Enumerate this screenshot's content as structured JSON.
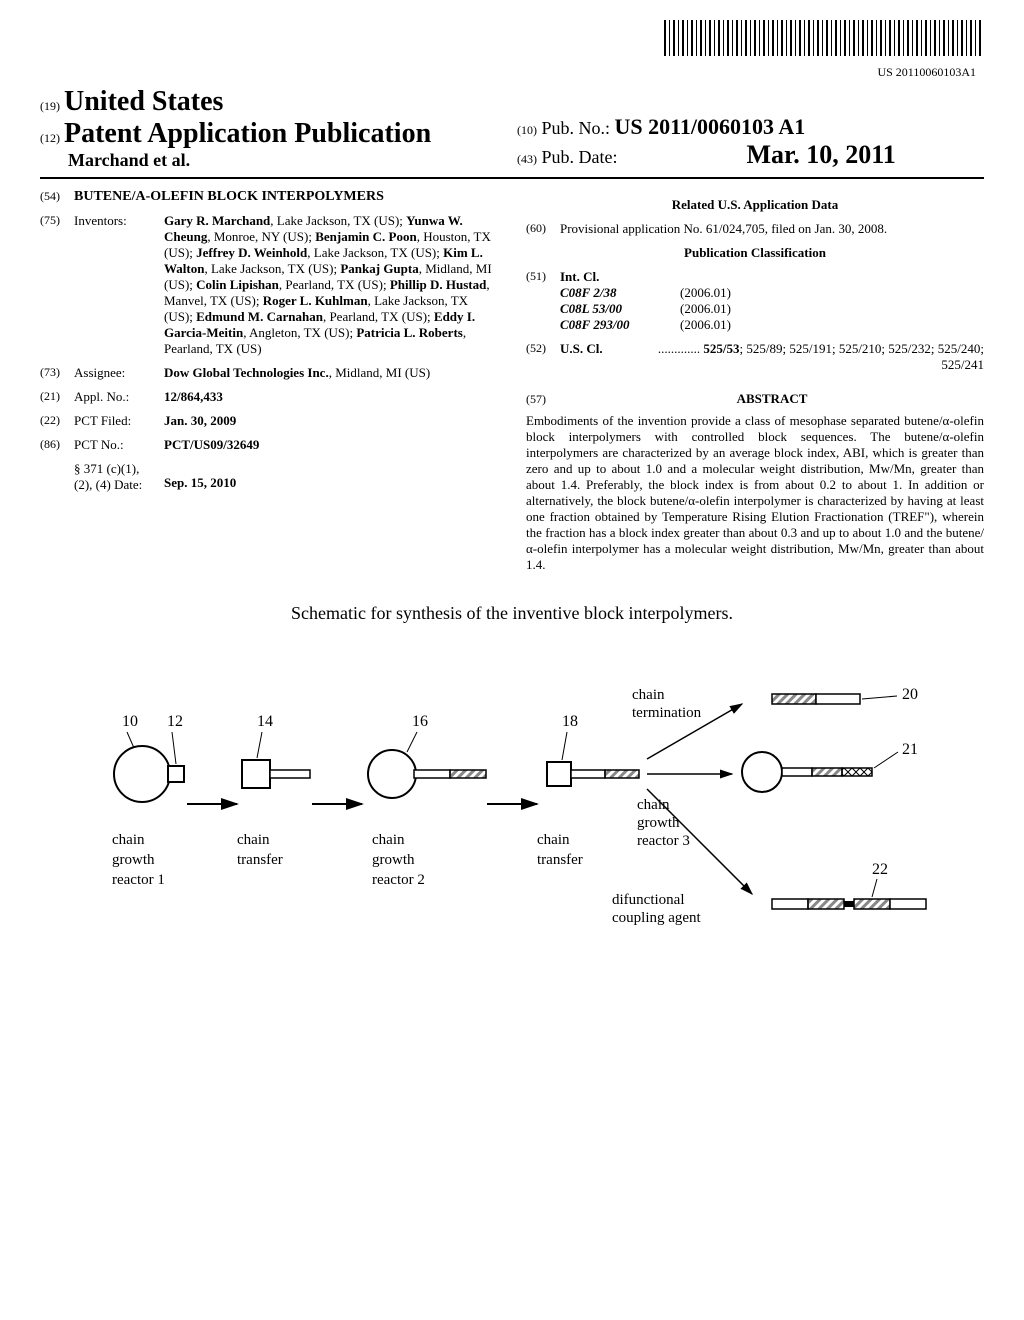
{
  "barcode_pubnum": "US 20110060103A1",
  "header": {
    "country_code": "(19)",
    "country": "United States",
    "pub_type_code": "(12)",
    "pub_type": "Patent Application Publication",
    "author_line": "Marchand et al.",
    "pubno_code": "(10)",
    "pubno_label": "Pub. No.:",
    "pubno_value": "US 2011/0060103 A1",
    "pubdate_code": "(43)",
    "pubdate_label": "Pub. Date:",
    "pubdate_value": "Mar. 10, 2011"
  },
  "left": {
    "title_code": "(54)",
    "title": "BUTENE/Α-OLEFIN BLOCK INTERPOLYMERS",
    "inventors_code": "(75)",
    "inventors_label": "Inventors:",
    "inventors_html": "<b>Gary R. Marchand</b>, Lake Jackson, TX (US); <b>Yunwa W. Cheung</b>, Monroe, NY (US); <b>Benjamin C. Poon</b>, Houston, TX (US); <b>Jeffrey D. Weinhold</b>, Lake Jackson, TX (US); <b>Kim L. Walton</b>, Lake Jackson, TX (US); <b>Pankaj Gupta</b>, Midland, MI (US); <b>Colin Lipishan</b>, Pearland, TX (US); <b>Phillip D. Hustad</b>, Manvel, TX (US); <b>Roger L. Kuhlman</b>, Lake Jackson, TX (US); <b>Edmund M. Carnahan</b>, Pearland, TX (US); <b>Eddy I. Garcia-Meitin</b>, Angleton, TX (US); <b>Patricia L. Roberts</b>, Pearland, TX (US)",
    "assignee_code": "(73)",
    "assignee_label": "Assignee:",
    "assignee_value": "<b>Dow Global Technologies Inc.</b>, Midland, MI (US)",
    "applno_code": "(21)",
    "applno_label": "Appl. No.:",
    "applno_value": "12/864,433",
    "pctfiled_code": "(22)",
    "pctfiled_label": "PCT Filed:",
    "pctfiled_value": "Jan. 30, 2009",
    "pctno_code": "(86)",
    "pctno_label": "PCT No.:",
    "pctno_value": "PCT/US09/32649",
    "sect371_label": "§ 371 (c)(1),\n(2), (4) Date:",
    "sect371_value": "Sep. 15, 2010"
  },
  "right": {
    "related_title": "Related U.S. Application Data",
    "prov_code": "(60)",
    "prov_text": "Provisional application No. 61/024,705, filed on Jan. 30, 2008.",
    "pubclass_title": "Publication Classification",
    "intcl_code": "(51)",
    "intcl_label": "Int. Cl.",
    "intcl_rows": [
      {
        "code": "C08F 2/38",
        "year": "(2006.01)"
      },
      {
        "code": "C08L 53/00",
        "year": "(2006.01)"
      },
      {
        "code": "C08F 293/00",
        "year": "(2006.01)"
      }
    ],
    "uscl_code": "(52)",
    "uscl_label": "U.S. Cl.",
    "uscl_value": "............. <b>525/53</b>; 525/89; 525/191; 525/210; 525/232; 525/240; 525/241",
    "abstract_code": "(57)",
    "abstract_title": "ABSTRACT",
    "abstract_text": "Embodiments of the invention provide a class of mesophase separated butene/α-olefin block interpolymers with controlled block sequences. The butene/α-olefin interpolymers are characterized by an average block index, ABI, which is greater than zero and up to about 1.0 and a molecular weight distribution, Mw/Mn, greater than about 1.4. Preferably, the block index is from about 0.2 to about 1. In addition or alternatively, the block butene/α-olefin interpolymer is characterized by having at least one fraction obtained by Temperature Rising Elution Fractionation (TREF\"), wherein the fraction has a block index greater than about 0.3 and up to about 1.0 and the butene/α-olefin interpolymer has a molecular weight distribution, Mw/Mn, greater than about 1.4."
  },
  "schematic": {
    "caption": "Schematic for synthesis of the inventive block interpolymers.",
    "labels": {
      "n10": "10",
      "n12": "12",
      "n14": "14",
      "n16": "16",
      "n18": "18",
      "n20": "20",
      "n21": "21",
      "n22": "22",
      "chain_growth_r1": "chain\ngrowth\nreactor 1",
      "chain_transfer1": "chain\ntransfer",
      "chain_growth_r2": "chain\ngrowth\nreactor 2",
      "chain_transfer2": "chain\ntransfer",
      "chain_termination": "chain\ntermination",
      "chain_growth_r3": "chain\ngrowth\nreactor 3",
      "difunctional": "difunctional\ncoupling agent"
    },
    "colors": {
      "stroke": "#000000",
      "fill_white": "#ffffff",
      "hatch": "#888888"
    }
  }
}
